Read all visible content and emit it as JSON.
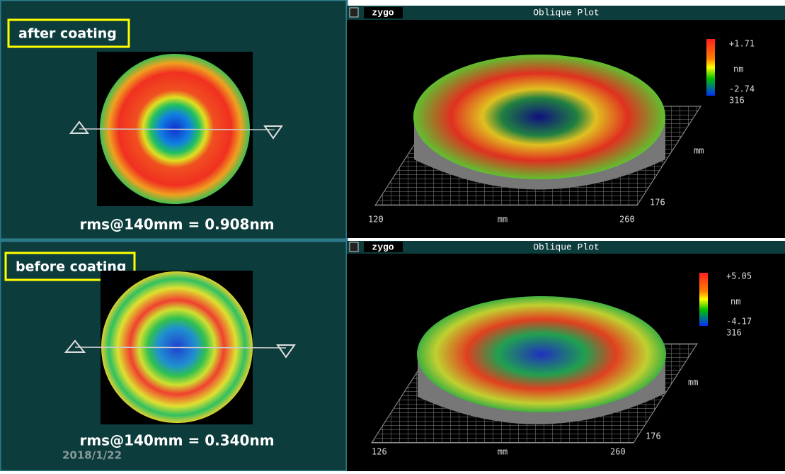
{
  "panels": [
    {
      "label": "after coating",
      "rms": "rms@140mm = 0.908nm",
      "plot": {
        "brand": "zygo",
        "title": "Oblique Plot",
        "scale_max": "+1.71",
        "scale_unit": "nm",
        "scale_min": "-2.74",
        "scale_extra": "316",
        "x_start": "120",
        "x_unit": "mm",
        "x_end": "260",
        "y_unit": "mm",
        "y_end": "176"
      }
    },
    {
      "label": "before coating",
      "rms": "rms@140mm = 0.340nm",
      "plot": {
        "brand": "zygo",
        "title": "Oblique Plot",
        "scale_max": "+5.05",
        "scale_unit": "nm",
        "scale_min": "-4.17",
        "scale_extra": "316",
        "x_start": "126",
        "x_unit": "mm",
        "x_end": "260",
        "y_unit": "mm",
        "y_end": "176"
      }
    }
  ],
  "date": "2018/1/22"
}
